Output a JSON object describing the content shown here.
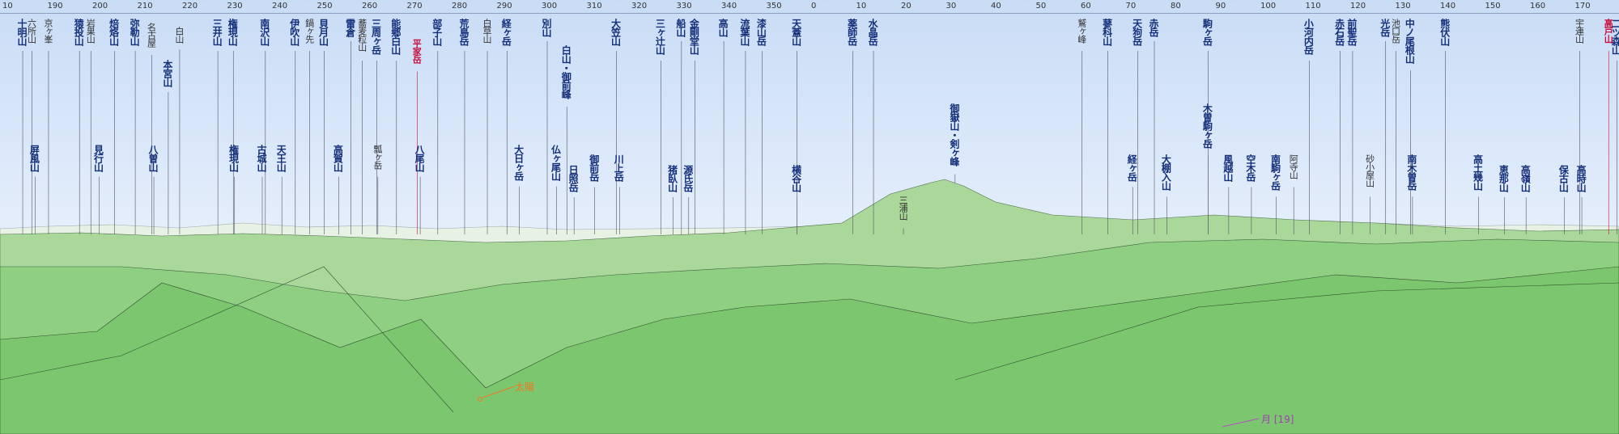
{
  "ruler": {
    "ticks": [
      "10",
      "190",
      "200",
      "210",
      "220",
      "230",
      "240",
      "250",
      "260",
      "270",
      "280",
      "290",
      "300",
      "310",
      "320",
      "330",
      "340",
      "350",
      "0",
      "10",
      "20",
      "30",
      "40",
      "50",
      "60",
      "70",
      "80",
      "90",
      "100",
      "110",
      "120",
      "130",
      "140",
      "150",
      "160",
      "170"
    ]
  },
  "peaks": [
    "十明山",
    "六所山",
    "京ヶ峯",
    "猿投山",
    "岩巣山",
    "焙烙山",
    "弥勒山",
    "名古屋",
    "本宮山",
    "白山",
    "三井山",
    "権現山",
    "南沢山",
    "伊吹山",
    "鍋ヶ先",
    "貝月山",
    "雷倉",
    "蕎麦粒山",
    "三周ヶ岳",
    "能郷白山",
    "平家岳",
    "部子山",
    "荒島岳",
    "白草山",
    "経ヶ岳",
    "別山",
    "白山・御前峰",
    "大笠山",
    "三ヶ辻山",
    "船山",
    "金剛堂山",
    "高山",
    "流葉山",
    "漆山岳",
    "天蓋山",
    "薬師岳",
    "水晶岳",
    "御嶽山・剣ヶ峰",
    "鷲ヶ峰",
    "蓼科山",
    "天狗岳",
    "赤岳",
    "駒ヶ岳",
    "木曽駒ヶ岳",
    "小河内岳",
    "赤石岳",
    "前聖岳",
    "光岳",
    "池口岳",
    "中ノ尾根山",
    "熊伏山",
    "宇連山",
    "高戸山",
    "二ツ森山",
    "屏風山",
    "見行山",
    "八曽山",
    "権現山",
    "古城山",
    "天王山",
    "高賀山",
    "瓢ヶ岳",
    "八尾山",
    "大日ヶ岳",
    "仏ヶ尾山",
    "日照岳",
    "御前岳",
    "川上岳",
    "猪臥山",
    "源氏岳",
    "横谷山",
    "三浦山",
    "経ヶ岳",
    "大棚入山",
    "風越山",
    "空木岳",
    "南駒ヶ岳",
    "阿寺山",
    "砂小屋山",
    "南木曽岳",
    "高土幾山",
    "恵那山",
    "高嶺山",
    "保古山",
    "高時山"
  ],
  "annotations": {
    "sun": "太陽",
    "moon": "月 [19]"
  }
}
